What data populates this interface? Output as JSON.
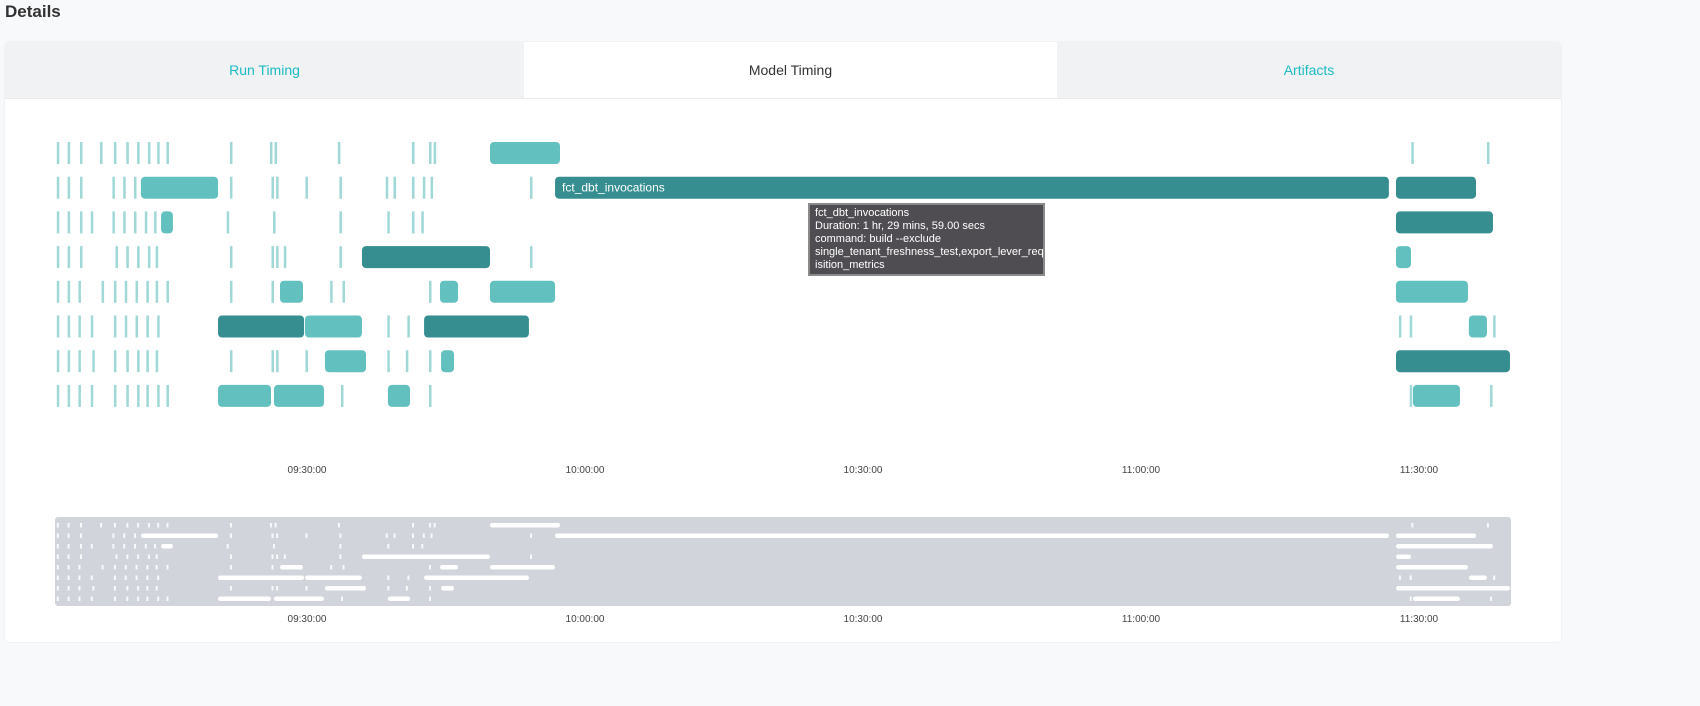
{
  "page": {
    "title": "Details"
  },
  "tabs": [
    {
      "label": "Run Timing",
      "active": false
    },
    {
      "label": "Model Timing",
      "active": true
    },
    {
      "label": "Artifacts",
      "active": false
    }
  ],
  "colors": {
    "light": "#62c0bf",
    "dark": "#368e91",
    "tick": "#9fd8d6",
    "minimap_bg": "#d1d5db",
    "tab_link": "#1bbcc3"
  },
  "axis": {
    "ticks": [
      "09:30:00",
      "10:00:00",
      "10:30:00",
      "11:00:00",
      "11:30:00"
    ]
  },
  "rows": [
    {
      "bars": [
        [
          "09:49:45",
          "09:57:18",
          0
        ]
      ],
      "ticks": [
        "09:03:00",
        "09:04:10",
        "09:05:30",
        "09:07:40",
        "09:09:10",
        "09:10:30",
        "09:11:40",
        "09:12:50",
        "09:13:50",
        "09:14:50",
        "09:21:41",
        "09:26:00",
        "09:26:30",
        "09:33:20",
        "09:41:20",
        "09:43:10",
        "09:43:40",
        "11:29:10",
        "11:37:20"
      ]
    },
    {
      "bars": [
        [
          "09:12:05",
          "09:20:24",
          0
        ],
        [
          "09:56:46",
          "11:26:45",
          1,
          "fct_dbt_invocations"
        ],
        [
          "11:27:31",
          "11:36:09",
          1
        ]
      ],
      "ticks": [
        "09:03:00",
        "09:04:10",
        "09:05:30",
        "09:09:00",
        "09:10:10",
        "09:11:20",
        "09:21:41",
        "09:26:10",
        "09:26:40",
        "09:29:50",
        "09:33:30",
        "09:38:30",
        "09:39:20",
        "09:41:20",
        "09:42:30",
        "09:43:20",
        "09:54:04"
      ]
    },
    {
      "bars": [
        [
          "09:14:15",
          "09:15:32",
          0
        ],
        [
          "11:27:31",
          "11:37:59",
          1
        ]
      ],
      "ticks": [
        "09:03:00",
        "09:04:10",
        "09:05:30",
        "09:06:40",
        "09:09:00",
        "09:10:10",
        "09:11:20",
        "09:12:30",
        "09:13:30",
        "09:21:20",
        "09:26:20",
        "09:33:30",
        "09:38:40",
        "09:41:20",
        "09:42:20"
      ]
    },
    {
      "bars": [
        [
          "09:35:56",
          "09:49:45",
          1
        ],
        [
          "11:27:31",
          "11:29:08",
          0
        ]
      ],
      "ticks": [
        "09:03:00",
        "09:04:10",
        "09:05:30",
        "09:09:20",
        "09:10:30",
        "09:11:40",
        "09:12:50",
        "09:13:40",
        "09:21:41",
        "09:26:10",
        "09:26:40",
        "09:27:30",
        "09:33:30",
        "09:54:04"
      ]
    },
    {
      "bars": [
        [
          "09:27:05",
          "09:29:34",
          0
        ],
        [
          "09:44:21",
          "09:46:18",
          0
        ],
        [
          "09:49:45",
          "09:56:46",
          0
        ],
        [
          "11:27:31",
          "11:35:17",
          0
        ]
      ],
      "ticks": [
        "09:03:00",
        "09:04:10",
        "09:05:20",
        "09:07:50",
        "09:09:10",
        "09:10:20",
        "09:11:30",
        "09:12:40",
        "09:13:40",
        "09:14:50",
        "09:21:41",
        "09:26:10",
        "09:32:30",
        "09:33:50",
        "09:43:10"
      ]
    },
    {
      "bars": [
        [
          "09:20:24",
          "09:29:41",
          1
        ],
        [
          "09:29:47",
          "09:35:56",
          0
        ],
        [
          "09:42:38",
          "09:53:57",
          1
        ],
        [
          "11:35:23",
          "11:37:20",
          0
        ]
      ],
      "ticks": [
        "09:03:00",
        "09:04:10",
        "09:05:20",
        "09:06:40",
        "09:09:10",
        "09:10:20",
        "09:11:30",
        "09:12:40",
        "09:13:50",
        "09:38:40",
        "09:40:50",
        "11:27:50",
        "11:29:00",
        "11:38:00"
      ]
    },
    {
      "bars": [
        [
          "09:31:56",
          "09:36:22",
          0
        ],
        [
          "09:44:28",
          "09:45:52",
          0
        ],
        [
          "11:27:31",
          "11:39:49",
          1
        ]
      ],
      "ticks": [
        "09:03:00",
        "09:04:10",
        "09:05:20",
        "09:06:50",
        "09:09:10",
        "09:10:30",
        "09:11:40",
        "09:12:40",
        "09:13:40",
        "09:21:41",
        "09:26:10",
        "09:26:40",
        "09:29:50",
        "09:38:40",
        "09:40:40",
        "09:43:10"
      ]
    },
    {
      "bars": [
        [
          "09:20:24",
          "09:26:07",
          0
        ],
        [
          "09:26:26",
          "09:31:50",
          0
        ],
        [
          "09:38:44",
          "09:41:07",
          0
        ],
        [
          "11:29:21",
          "11:34:25",
          0
        ]
      ],
      "ticks": [
        "09:03:00",
        "09:04:10",
        "09:05:20",
        "09:06:40",
        "09:09:10",
        "09:10:30",
        "09:11:40",
        "09:12:40",
        "09:13:50",
        "09:14:50",
        "09:33:40",
        "09:43:10",
        "11:29:00",
        "11:37:40"
      ]
    }
  ],
  "tooltip": {
    "lines": [
      "fct_dbt_invocations",
      "Duration: 1 hr, 29 mins, 59.00 secs",
      "command: build --exclude",
      "single_tenant_freshness_test,export_lever_requ",
      "isition_metrics"
    ]
  }
}
